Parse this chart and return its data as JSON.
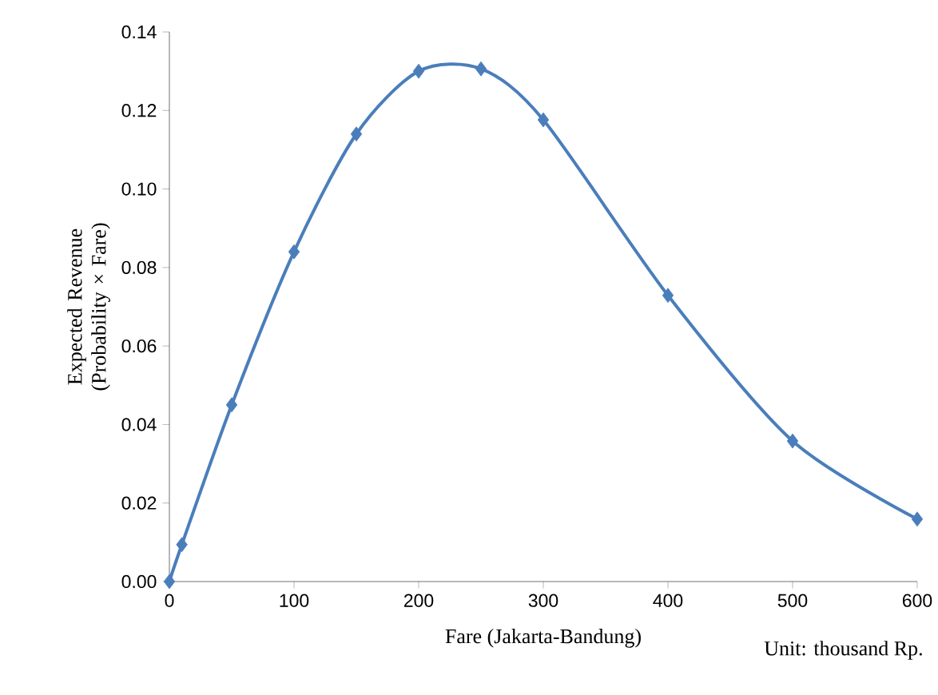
{
  "chart_data": {
    "type": "line",
    "xlabel": "Fare (Jakarta-Bandung)",
    "ylabel": "Expected Revenue (Probability × Fare)",
    "annotations": [
      "Unit: thousand Rp."
    ],
    "x": [
      0,
      10,
      50,
      100,
      150,
      200,
      250,
      300,
      400,
      500,
      600
    ],
    "series": [
      {
        "color": "#4a7ebb",
        "values": [
          0,
          0.0094,
          0.045,
          0.084,
          0.114,
          0.13,
          0.1306,
          0.1176,
          0.0729,
          0.0358,
          0.0159
        ]
      }
    ],
    "xlim": [
      0,
      600
    ],
    "xticks": [
      0,
      100,
      200,
      300,
      400,
      500,
      600
    ],
    "ylim": [
      0,
      0.14
    ],
    "yticks": [
      {
        "value": 0,
        "label": "0.00"
      },
      {
        "value": 0.02,
        "label": "0.02"
      },
      {
        "value": 0.04,
        "label": "0.04"
      },
      {
        "value": 0.06,
        "label": "0.06"
      },
      {
        "value": 0.08,
        "label": "0.08"
      },
      {
        "value": 0.1,
        "label": "0.10"
      },
      {
        "value": 0.12,
        "label": "0.12"
      },
      {
        "value": 0.14,
        "label": "0.14"
      }
    ],
    "marker": "diamond",
    "line_style": "solid"
  }
}
